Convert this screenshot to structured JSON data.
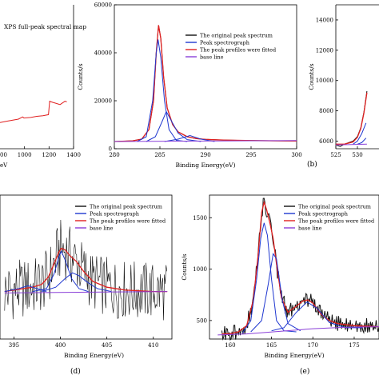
{
  "chart_data": [
    {
      "type": "line",
      "panel": "a",
      "title": "XPS full-peak spectral map",
      "xlabel": "eV",
      "ylabel": "",
      "xlim": [
        800,
        1400
      ],
      "ticks_x": [
        "1000",
        "1200",
        "1400"
      ],
      "ticks_x_partial": "00",
      "series": [
        {
          "name": "",
          "color": "#e02020",
          "x": [
            800,
            850,
            900,
            950,
            985,
            995,
            1050,
            1100,
            1150,
            1195,
            1205,
            1230,
            1260,
            1290,
            1330,
            1345
          ],
          "y": [
            0.04,
            0.06,
            0.08,
            0.1,
            0.14,
            0.12,
            0.13,
            0.15,
            0.16,
            0.18,
            0.42,
            0.4,
            0.38,
            0.36,
            0.42,
            0.41
          ]
        }
      ]
    },
    {
      "type": "line",
      "panel": "b",
      "caption": "(b)",
      "xlabel": "Binding Energy(eV)",
      "ylabel": "Counts/s",
      "xlim": [
        280,
        300
      ],
      "ylim": [
        0,
        60000
      ],
      "ticks_x": [
        "280",
        "285",
        "290",
        "295",
        "300"
      ],
      "ticks_y": [
        "0",
        "20000",
        "40000",
        "60000"
      ],
      "legend": [
        "The original peak spectrum",
        "Peak spectrograph",
        "The peak profiles were fitted",
        "base line"
      ],
      "legend_colors": [
        "#111111",
        "#2038d0",
        "#e02020",
        "#8a3fd8"
      ],
      "series": [
        {
          "name": "The original peak spectrum",
          "color": "#111111",
          "x": [
            280,
            282,
            283,
            283.8,
            284.3,
            284.6,
            284.85,
            285.1,
            285.4,
            285.8,
            286.4,
            287,
            288,
            289,
            290,
            292,
            295,
            300
          ],
          "y": [
            3000,
            3300,
            4000,
            8000,
            20000,
            40000,
            51500,
            46000,
            30000,
            17000,
            10000,
            7000,
            5000,
            4200,
            3900,
            3600,
            3400,
            3200
          ]
        },
        {
          "name": "The peak profiles were fitted",
          "color": "#e02020",
          "x": [
            280,
            282,
            283,
            283.8,
            284.3,
            284.6,
            284.85,
            285.1,
            285.4,
            285.8,
            286.4,
            287,
            288,
            289,
            290,
            292,
            295,
            300
          ],
          "y": [
            3000,
            3300,
            4000,
            8000,
            20000,
            40000,
            51500,
            46000,
            30000,
            17000,
            10000,
            7000,
            5000,
            4200,
            3900,
            3600,
            3400,
            3200
          ]
        },
        {
          "name": "Peak spectrograph",
          "color": "#2038d0",
          "x": [
            282.5,
            283.5,
            284.2,
            284.6,
            284.8,
            285.1,
            285.5,
            286,
            286.8,
            288
          ],
          "y": [
            3000,
            5000,
            20000,
            40000,
            45500,
            38000,
            20000,
            8000,
            3500,
            3000
          ]
        },
        {
          "name": "Peak spectrograph",
          "color": "#2038d0",
          "x": [
            283.5,
            284.5,
            285.2,
            285.7,
            286.2,
            287,
            288,
            289.5
          ],
          "y": [
            3000,
            5000,
            11000,
            15500,
            12000,
            6500,
            3800,
            3000
          ]
        },
        {
          "name": "Peak spectrograph",
          "color": "#2038d0",
          "x": [
            285.5,
            287,
            288.3,
            289.5,
            291
          ],
          "y": [
            3000,
            4000,
            5500,
            4000,
            3000
          ]
        },
        {
          "name": "base line",
          "color": "#8a3fd8",
          "x": [
            280,
            290,
            300
          ],
          "y": [
            3000,
            3200,
            3400
          ]
        }
      ]
    },
    {
      "type": "line",
      "panel": "c",
      "xlabel": "",
      "ylabel": "Counts/s",
      "xlim": [
        525,
        535
      ],
      "ylim": [
        5500,
        15000
      ],
      "ticks_x": [
        "525",
        "530"
      ],
      "ticks_y": [
        "6000",
        "8000",
        "10000",
        "12000",
        "14000"
      ],
      "series": [
        {
          "name": "The original peak spectrum",
          "color": "#111111",
          "x": [
            525,
            526,
            527,
            528,
            529,
            530,
            530.8,
            531.5,
            532.2
          ],
          "y": [
            5750,
            5650,
            5800,
            5900,
            6000,
            6300,
            6900,
            7900,
            9300
          ]
        },
        {
          "name": "The peak profiles were fitted",
          "color": "#e02020",
          "x": [
            525,
            527,
            529,
            530,
            530.8,
            531.5,
            532.2
          ],
          "y": [
            5800,
            5800,
            5950,
            6250,
            6850,
            7850,
            9200
          ]
        },
        {
          "name": "Peak spectrograph",
          "color": "#2038d0",
          "x": [
            529,
            530,
            531,
            532
          ],
          "y": [
            5800,
            6000,
            6500,
            7200
          ]
        },
        {
          "name": "Peak spectrograph",
          "color": "#2038d0",
          "x": [
            530,
            531,
            532
          ],
          "y": [
            5800,
            5900,
            6200
          ]
        },
        {
          "name": "base line",
          "color": "#8a3fd8",
          "x": [
            525,
            532.2
          ],
          "y": [
            5750,
            5800
          ]
        }
      ]
    },
    {
      "type": "line",
      "panel": "d",
      "caption": "(d)",
      "xlabel": "Binding Energy(eV)",
      "ylabel": "",
      "xlim": [
        393.5,
        412
      ],
      "ylim": [
        0,
        100
      ],
      "ticks_x": [
        "395",
        "400",
        "405",
        "410"
      ],
      "legend": [
        "The original peak spectrum",
        "Peak spectrograph",
        "The peak profiles were fitted",
        "base line"
      ],
      "legend_colors": [
        "#111111",
        "#2038d0",
        "#e02020",
        "#8a3fd8"
      ],
      "series": [
        {
          "name": "The peak profiles were fitted",
          "color": "#e02020",
          "x": [
            394,
            395,
            396,
            397,
            398,
            398.7,
            399.3,
            399.8,
            400.1,
            400.5,
            401,
            401.7,
            402.5,
            403.5,
            405,
            407,
            410,
            411.5
          ],
          "y": [
            33,
            34,
            35,
            36,
            38,
            43,
            52,
            60,
            63,
            62,
            58,
            54,
            47,
            40,
            36,
            34,
            33,
            33
          ]
        },
        {
          "name": "Peak spectrograph",
          "color": "#2038d0",
          "x": [
            397,
            398.5,
            399.3,
            399.9,
            400.1,
            400.5,
            401.2,
            402,
            403
          ],
          "y": [
            33,
            35,
            45,
            58,
            61,
            55,
            42,
            35,
            33
          ]
        },
        {
          "name": "Peak spectrograph",
          "color": "#2038d0",
          "x": [
            398,
            399.5,
            400.5,
            401.3,
            402,
            403,
            404,
            405.5
          ],
          "y": [
            33,
            36,
            42,
            46,
            44,
            39,
            35,
            33
          ]
        },
        {
          "name": "Peak spectrograph",
          "color": "#2038d0",
          "x": [
            394,
            395.5,
            396.5,
            397.5,
            398.5
          ],
          "y": [
            33,
            35,
            37,
            35,
            33
          ]
        },
        {
          "name": "base line",
          "color": "#8a3fd8",
          "x": [
            394,
            402,
            411.5
          ],
          "y": [
            32,
            32.5,
            33
          ]
        }
      ]
    },
    {
      "type": "line",
      "panel": "e",
      "caption": "(e)",
      "xlabel": "Binding Energy(eV)",
      "ylabel": "Counts/s",
      "xlim": [
        157.5,
        178
      ],
      "ylim": [
        320,
        1720
      ],
      "ticks_x": [
        "160",
        "165",
        "170",
        "175"
      ],
      "ticks_y": [
        "500",
        "1000",
        "1500"
      ],
      "legend": [
        "The original peak spectrum",
        "Peak spectrograph",
        "The peak profiles were fitted",
        "base line"
      ],
      "legend_colors": [
        "#111111",
        "#2038d0",
        "#e02020",
        "#8a3fd8"
      ],
      "series": [
        {
          "name": "The original peak spectrum",
          "color": "#111111",
          "x": [
            159,
            160,
            161,
            162,
            162.8,
            163.4,
            163.8,
            164.1,
            164.4,
            164.8,
            165.2,
            165.6,
            166.2,
            167,
            168,
            168.8,
            169.4,
            170,
            171,
            172,
            173,
            175,
            178
          ],
          "y": [
            370,
            372,
            390,
            450,
            700,
            1150,
            1550,
            1650,
            1580,
            1450,
            1300,
            1050,
            720,
            580,
            640,
            690,
            700,
            670,
            560,
            500,
            470,
            450,
            440
          ]
        },
        {
          "name": "The peak profiles were fitted",
          "color": "#e02020",
          "x": [
            159,
            160,
            161,
            162,
            162.8,
            163.4,
            163.8,
            164.1,
            164.4,
            164.8,
            165.2,
            165.6,
            166.2,
            167,
            168,
            168.8,
            169.4,
            170,
            171,
            172,
            173,
            175,
            178
          ],
          "y": [
            370,
            372,
            390,
            450,
            700,
            1150,
            1550,
            1650,
            1580,
            1450,
            1300,
            1050,
            720,
            580,
            640,
            690,
            700,
            670,
            560,
            500,
            470,
            450,
            440
          ]
        },
        {
          "name": "Peak spectrograph",
          "color": "#2038d0",
          "x": [
            161.5,
            162.5,
            163.2,
            163.7,
            164.1,
            164.5,
            165,
            165.6,
            166.5,
            168
          ],
          "y": [
            380,
            500,
            900,
            1300,
            1450,
            1330,
            900,
            500,
            400,
            390
          ]
        },
        {
          "name": "Peak spectrograph",
          "color": "#2038d0",
          "x": [
            162.5,
            163.8,
            164.6,
            165.2,
            165.6,
            166.3,
            167,
            168.5
          ],
          "y": [
            390,
            500,
            850,
            1150,
            1100,
            700,
            470,
            400
          ]
        },
        {
          "name": "Peak spectrograph",
          "color": "#2038d0",
          "x": [
            165,
            166.5,
            168,
            169.3,
            170.5,
            172,
            174,
            176
          ],
          "y": [
            400,
            430,
            580,
            680,
            620,
            480,
            430,
            430
          ]
        },
        {
          "name": "base line",
          "color": "#8a3fd8",
          "x": [
            158.5,
            162,
            166,
            170,
            174,
            178
          ],
          "y": [
            360,
            370,
            395,
            420,
            435,
            440
          ]
        }
      ]
    }
  ]
}
